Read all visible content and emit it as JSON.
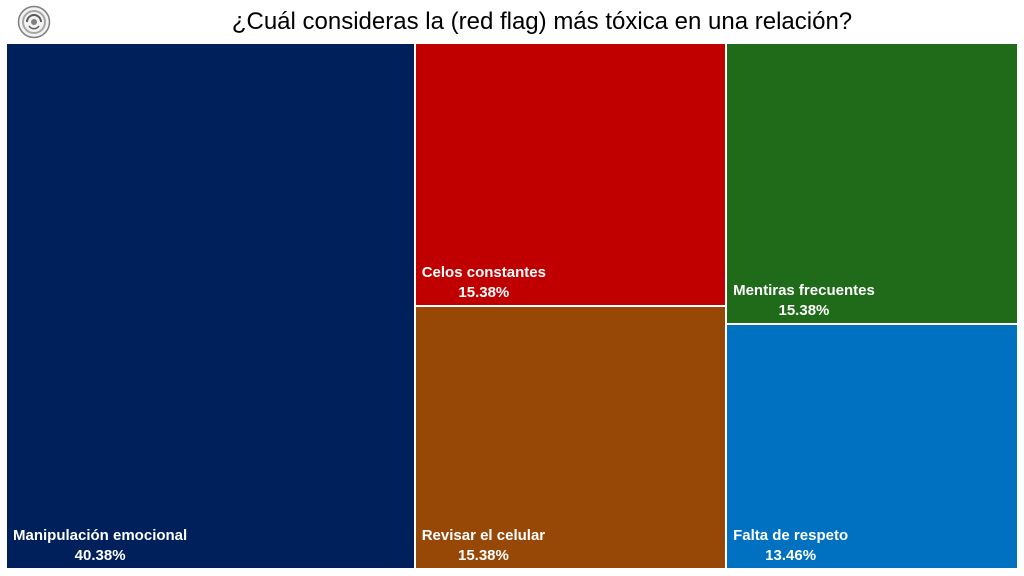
{
  "header": {
    "title": "¿Cuál consideras la (red flag) más tóxica en una relación?",
    "logo_icon": "globe-logo-icon"
  },
  "chart_data": {
    "type": "treemap",
    "title": "¿Cuál consideras la (red flag) más tóxica en una relación?",
    "items": [
      {
        "name": "Manipulación emocional",
        "value": 40.38,
        "label": "40.38%",
        "color": "#00205B"
      },
      {
        "name": "Celos constantes",
        "value": 15.38,
        "label": "15.38%",
        "color": "#C00000"
      },
      {
        "name": "Revisar el celular",
        "value": 15.38,
        "label": "15.38%",
        "color": "#974806"
      },
      {
        "name": "Mentiras frecuentes",
        "value": 15.38,
        "label": "15.38%",
        "color": "#1F6B1A"
      },
      {
        "name": "Falta de respeto",
        "value": 13.46,
        "label": "13.46%",
        "color": "#0070C0"
      }
    ]
  }
}
